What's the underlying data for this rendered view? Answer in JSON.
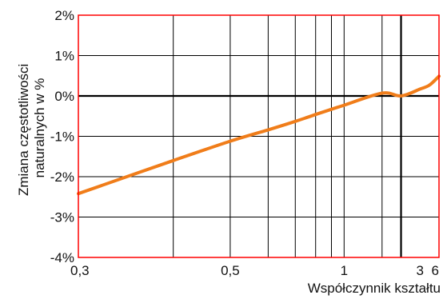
{
  "chart_data": {
    "type": "line",
    "xlabel": "Współczynnik kształtu",
    "ylabel_lines": [
      "Zmiana częstotliwości",
      "naturalnych w %"
    ],
    "x_scale": "reciprocal",
    "xlim": [
      0.3,
      6
    ],
    "ylim": [
      -4,
      2
    ],
    "x_ticks": [
      {
        "value": 0.3,
        "label": "0,3"
      },
      {
        "value": 0.5,
        "label": "0,5"
      },
      {
        "value": 1,
        "label": "1"
      },
      {
        "value": 3,
        "label": "3"
      },
      {
        "value": 6,
        "label": "6"
      }
    ],
    "x_gridlines": [
      0.4,
      0.5,
      0.6,
      0.7,
      0.8,
      0.9,
      1,
      1.5
    ],
    "reference_x": 2,
    "y_ticks": [
      {
        "value": 2,
        "label": "2%"
      },
      {
        "value": 1,
        "label": "1%"
      },
      {
        "value": 0,
        "label": "0%"
      },
      {
        "value": -1,
        "label": "-1%"
      },
      {
        "value": -2,
        "label": "-2%"
      },
      {
        "value": -3,
        "label": "-3%"
      },
      {
        "value": -4,
        "label": "-4%"
      }
    ],
    "grid": true,
    "series": [
      {
        "x": [
          0.3,
          0.4,
          0.5,
          0.6,
          0.7,
          0.8,
          0.9,
          1.0,
          1.5,
          2.0,
          3.0,
          4.0,
          6.0
        ],
        "y": [
          -2.42,
          -1.6,
          -1.12,
          -0.84,
          -0.63,
          -0.46,
          -0.33,
          -0.23,
          0.07,
          0.0,
          0.17,
          0.27,
          0.49
        ]
      }
    ],
    "colors": {
      "frame": "#ff0000",
      "grid": "#000000",
      "zero_line": "#000000",
      "series": "#f07d1a"
    }
  }
}
